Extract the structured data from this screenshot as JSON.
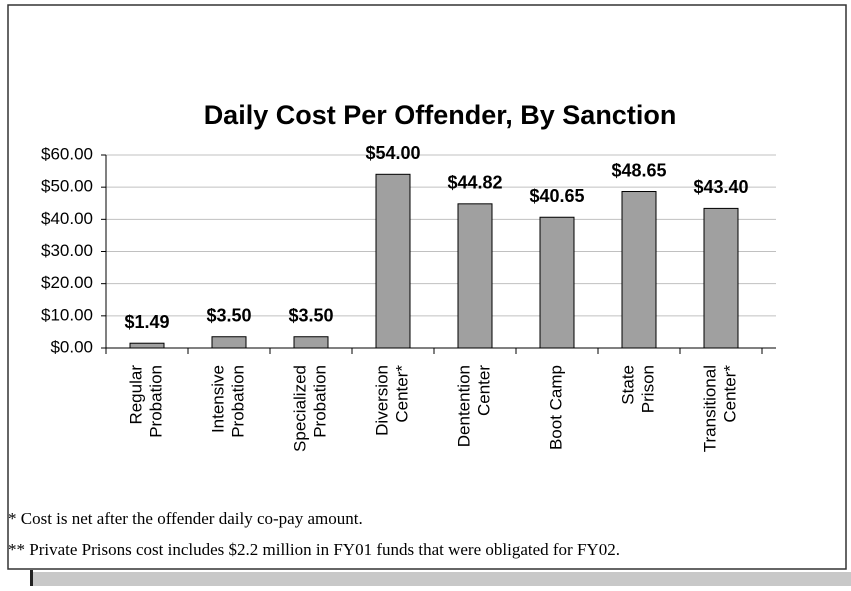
{
  "chart_data": {
    "type": "bar",
    "title": "Daily Cost Per Offender, By Sanction",
    "categories": [
      [
        "Regular",
        "Probation"
      ],
      [
        "Intensive",
        "Probation"
      ],
      [
        "Specialized",
        "Probation"
      ],
      [
        "Diversion",
        "Center*"
      ],
      [
        "Dentention",
        "Center"
      ],
      [
        "Boot Camp"
      ],
      [
        "State",
        "Prison"
      ],
      [
        "Transitional",
        "Center*"
      ]
    ],
    "values": [
      1.49,
      3.5,
      3.5,
      54,
      44.82,
      40.65,
      48.65,
      43.4
    ],
    "value_labels": [
      "$1.49",
      "$3.50",
      "$3.50",
      "$54.00",
      "$44.82",
      "$40.65",
      "$48.65",
      "$43.40"
    ],
    "color": "#a0a0a0",
    "ylim": [
      0,
      60
    ],
    "yticks": [
      {
        "value": 0,
        "label": "$0.00"
      },
      {
        "value": 10,
        "label": "$10.00"
      },
      {
        "value": 20,
        "label": "$20.00"
      },
      {
        "value": 30,
        "label": "$30.00"
      },
      {
        "value": 40,
        "label": "$40.00"
      },
      {
        "value": 50,
        "label": "$50.00"
      },
      {
        "value": 60,
        "label": "$60.00"
      }
    ],
    "grid": true,
    "notes": [
      "* Cost is net after the offender daily co-pay amount.",
      "** Private Prisons cost includes $2.2 million in FY01 funds that were obligated for FY02."
    ]
  }
}
